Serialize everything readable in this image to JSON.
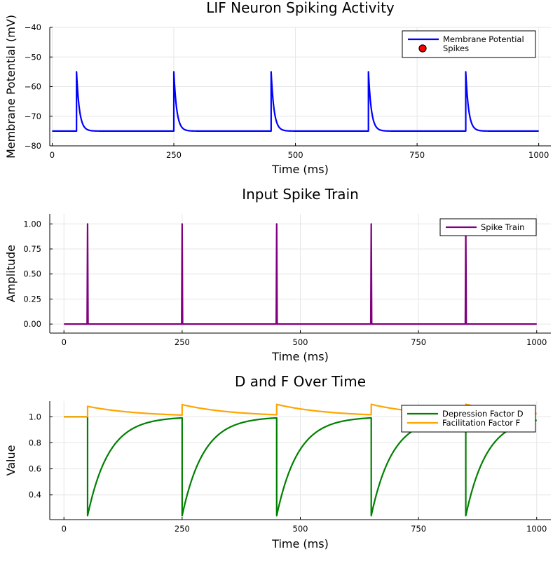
{
  "chart_data": [
    {
      "type": "line",
      "title": "LIF Neuron Spiking Activity",
      "xlabel": "Time (ms)",
      "ylabel": "Membrane Potential (mV)",
      "xlim": [
        -5,
        1025
      ],
      "ylim": [
        -80,
        -40
      ],
      "xticks": [
        0,
        250,
        500,
        750,
        1000
      ],
      "xtick_labels": [
        "0",
        "250",
        "500",
        "750",
        "1000"
      ],
      "yticks": [
        -80,
        -70,
        -60,
        -50,
        -40
      ],
      "ytick_labels": [
        "−80",
        "−70",
        "−60",
        "−50",
        "−40"
      ],
      "grid": true,
      "legend_position": "top-right",
      "spike_times": [
        50,
        250,
        450,
        650,
        850
      ],
      "rest_potential": -75,
      "peak_potential": -55,
      "decay_tau_ms": 6,
      "series": [
        {
          "name": "Membrane Potential",
          "kind": "line",
          "color": "#0000ff"
        },
        {
          "name": "Spikes",
          "kind": "scatter",
          "color": "#ff0000"
        }
      ]
    },
    {
      "type": "line",
      "title": "Input Spike Train",
      "xlabel": "Time (ms)",
      "ylabel": "Amplitude",
      "xlim": [
        -30,
        1030
      ],
      "ylim": [
        -0.09,
        1.1
      ],
      "xticks": [
        0,
        250,
        500,
        750,
        1000
      ],
      "xtick_labels": [
        "0",
        "250",
        "500",
        "750",
        "1000"
      ],
      "yticks": [
        0.0,
        0.25,
        0.5,
        0.75,
        1.0
      ],
      "ytick_labels": [
        "0.00",
        "0.25",
        "0.50",
        "0.75",
        "1.00"
      ],
      "grid": true,
      "legend_position": "top-right",
      "spike_times": [
        50,
        250,
        450,
        650,
        850
      ],
      "baseline": 0,
      "spike_amplitude": 1,
      "series": [
        {
          "name": "Spike Train",
          "kind": "line",
          "color": "#800080"
        }
      ]
    },
    {
      "type": "line",
      "title": "D and F Over Time",
      "xlabel": "Time (ms)",
      "ylabel": "Value",
      "xlim": [
        -30,
        1030
      ],
      "ylim": [
        0.21,
        1.12
      ],
      "xticks": [
        0,
        250,
        500,
        750,
        1000
      ],
      "xtick_labels": [
        "0",
        "250",
        "500",
        "750",
        "1000"
      ],
      "yticks": [
        0.4,
        0.6,
        0.8,
        1.0
      ],
      "ytick_labels": [
        "0.4",
        "0.6",
        "0.8",
        "1.0"
      ],
      "grid": true,
      "legend_position": "top-right",
      "spike_times": [
        50,
        250,
        450,
        650,
        850
      ],
      "depression": {
        "start": 1.0,
        "after_spike": 0.24,
        "tau_ms": 45
      },
      "facilitation": {
        "start": 1.0,
        "jump": 0.08,
        "tau_ms": 110
      },
      "series": [
        {
          "name": "Depression Factor D",
          "kind": "line",
          "color": "#008000"
        },
        {
          "name": "Facilitation Factor F",
          "kind": "line",
          "color": "#ffa500"
        }
      ]
    }
  ]
}
